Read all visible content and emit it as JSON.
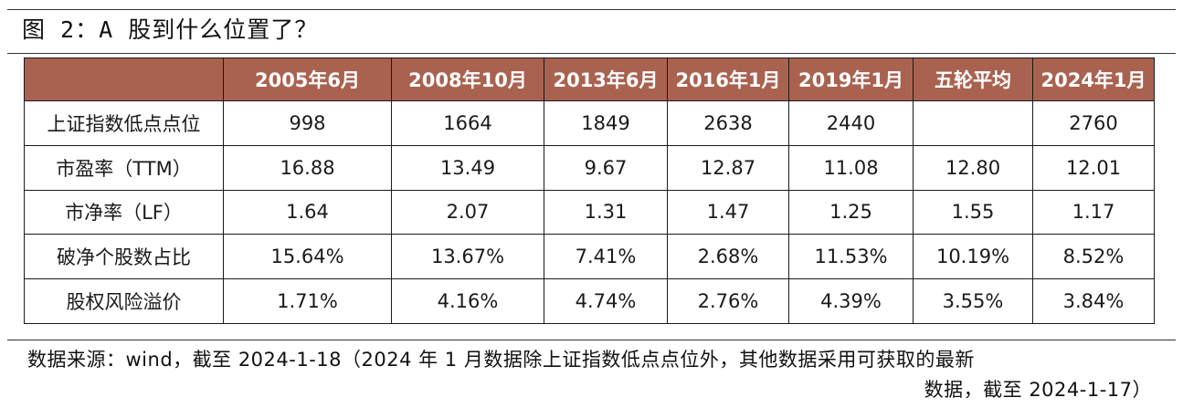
{
  "figure": {
    "title": "图 2：A 股到什么位置了？"
  },
  "table": {
    "columns": [
      "2005年6月",
      "2008年10月",
      "2013年6月",
      "2016年1月",
      "2019年1月",
      "五轮平均",
      "2024年1月"
    ],
    "rows": [
      {
        "label": "上证指数低点点位",
        "values": [
          "998",
          "1664",
          "1849",
          "2638",
          "2440",
          "",
          "2760"
        ]
      },
      {
        "label": "市盈率（TTM）",
        "values": [
          "16.88",
          "13.49",
          "9.67",
          "12.87",
          "11.08",
          "12.80",
          "12.01"
        ]
      },
      {
        "label": "市净率（LF）",
        "values": [
          "1.64",
          "2.07",
          "1.31",
          "1.47",
          "1.25",
          "1.55",
          "1.17"
        ]
      },
      {
        "label": "破净个股数占比",
        "values": [
          "15.64%",
          "13.67%",
          "7.41%",
          "2.68%",
          "11.53%",
          "10.19%",
          "8.52%"
        ]
      },
      {
        "label": "股权风险溢价",
        "values": [
          "1.71%",
          "4.16%",
          "4.74%",
          "2.76%",
          "4.39%",
          "3.55%",
          "3.84%"
        ]
      }
    ]
  },
  "source": {
    "line1": "数据来源：wind，截至 2024-1-18（2024 年 1 月数据除上证指数低点点位外，其他数据采用可获取的最新",
    "line2": "数据，截至 2024-1-17）"
  }
}
